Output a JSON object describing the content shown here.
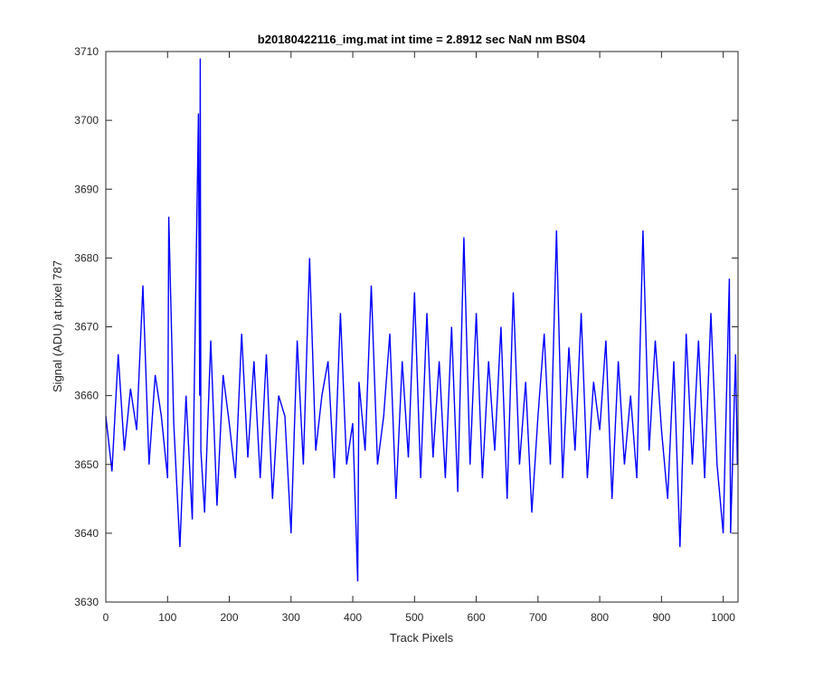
{
  "chart_data": {
    "type": "line",
    "title": "b20180422116_img.mat int time = 2.8912 sec  NaN nm BS04",
    "xlabel": "Track Pixels",
    "ylabel": "Signal (ADU) at pixel 787",
    "xlim": [
      0,
      1024
    ],
    "ylim": [
      3630,
      3710
    ],
    "xticks": [
      0,
      100,
      200,
      300,
      400,
      500,
      600,
      700,
      800,
      900,
      1000
    ],
    "yticks": [
      3630,
      3640,
      3650,
      3660,
      3670,
      3680,
      3690,
      3700,
      3710
    ],
    "grid": false,
    "line_color": "#0000ff",
    "series": [
      {
        "x": [
          0,
          10,
          20,
          30,
          40,
          50,
          60,
          70,
          80,
          90,
          100,
          102,
          110,
          116,
          120,
          130,
          140,
          150,
          152,
          153,
          154,
          160,
          170,
          180,
          190,
          200,
          210,
          220,
          230,
          240,
          250,
          260,
          270,
          280,
          290,
          300,
          310,
          320,
          330,
          340,
          350,
          360,
          370,
          380,
          390,
          400,
          408,
          410,
          420,
          430,
          440,
          450,
          460,
          470,
          480,
          490,
          500,
          510,
          520,
          530,
          540,
          550,
          560,
          570,
          580,
          590,
          600,
          610,
          620,
          630,
          640,
          650,
          660,
          670,
          680,
          690,
          700,
          710,
          720,
          730,
          740,
          750,
          760,
          770,
          780,
          790,
          800,
          810,
          820,
          830,
          840,
          850,
          860,
          870,
          880,
          890,
          900,
          910,
          920,
          930,
          940,
          950,
          960,
          970,
          980,
          990,
          1000,
          1010,
          1012,
          1020,
          1023
        ],
        "y": [
          3657,
          3649,
          3666,
          3652,
          3661,
          3655,
          3676,
          3650,
          3663,
          3657,
          3648,
          3686,
          3656,
          3645,
          3638,
          3660,
          3642,
          3701,
          3660,
          3709,
          3652,
          3643,
          3668,
          3644,
          3663,
          3656,
          3648,
          3669,
          3651,
          3665,
          3648,
          3666,
          3645,
          3660,
          3657,
          3640,
          3668,
          3650,
          3680,
          3652,
          3660,
          3665,
          3648,
          3672,
          3650,
          3656,
          3633,
          3662,
          3652,
          3676,
          3650,
          3657,
          3669,
          3645,
          3665,
          3651,
          3675,
          3648,
          3672,
          3651,
          3665,
          3648,
          3670,
          3646,
          3683,
          3650,
          3672,
          3648,
          3665,
          3652,
          3670,
          3645,
          3675,
          3650,
          3662,
          3643,
          3657,
          3669,
          3650,
          3684,
          3648,
          3667,
          3652,
          3672,
          3648,
          3662,
          3655,
          3668,
          3645,
          3665,
          3650,
          3660,
          3648,
          3684,
          3652,
          3668,
          3655,
          3645,
          3665,
          3638,
          3669,
          3650,
          3668,
          3648,
          3672,
          3650,
          3640,
          3677,
          3640,
          3666,
          3650
        ]
      }
    ]
  }
}
